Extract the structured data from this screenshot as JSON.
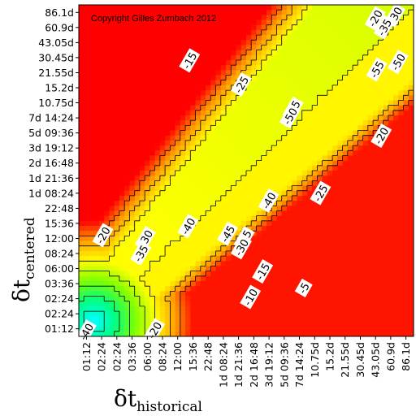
{
  "chart_data": {
    "type": "heatmap",
    "title": "",
    "annotation": "Copyright Gilles Zumbach 2012",
    "xlabel": {
      "symbol": "δt",
      "subscript": "historical"
    },
    "ylabel": {
      "symbol": "δt",
      "subscript": "centered"
    },
    "x_ticks": [
      "01:12",
      "02:24",
      "02:24",
      "03:36",
      "06:00",
      "08:24",
      "12:00",
      "15:36",
      "22:48",
      "1d 08:24",
      "1d 21:36",
      "2d 16:48",
      "3d 19:12",
      "5d 09:36",
      "7d 14:24",
      "10.75d",
      "15.2d",
      "21.55d",
      "30.45d",
      "43.05d",
      "60.9d",
      "86.1d"
    ],
    "y_ticks": [
      "86.1d",
      "60.9d",
      "43.05d",
      "30.45d",
      "21.55d",
      "15.2d",
      "10.75d",
      "7d 14:24",
      "5d 09:36",
      "3d 19:12",
      "2d 16:48",
      "1d 21:36",
      "1d 08:24",
      "22:48",
      "15:36",
      "12:00",
      "08:24",
      "06:00",
      "03:36",
      "02:24",
      "02:24",
      "01:12"
    ],
    "colormap": [
      "#0000ff",
      "#00a0ff",
      "#00ffff",
      "#00ff80",
      "#80ff00",
      "#ffff00",
      "#ffa000",
      "#ff0000"
    ],
    "value_range": [
      -55,
      0
    ],
    "contour_labels": [
      {
        "text": "-20",
        "col": 19.0,
        "row": 0.4
      },
      {
        "text": "-30",
        "col": 20.3,
        "row": 0.2
      },
      {
        "text": "-35",
        "col": 19.6,
        "row": 1.0
      },
      {
        "text": "-15",
        "col": 6.8,
        "row": 3.2
      },
      {
        "text": "-25",
        "col": 10.2,
        "row": 4.8
      },
      {
        "text": "-55",
        "col": 19.1,
        "row": 3.8
      },
      {
        "text": "-50",
        "col": 20.5,
        "row": 3.3
      },
      {
        "text": "-45",
        "col": 13.6,
        "row": 6.4
      },
      {
        "text": "-50",
        "col": 13.4,
        "row": 6.9
      },
      {
        "text": "-20",
        "col": 19.4,
        "row": 8.2
      },
      {
        "text": "-25",
        "col": 15.4,
        "row": 12.0
      },
      {
        "text": "-40",
        "col": 12.0,
        "row": 12.5
      },
      {
        "text": "-40",
        "col": 6.7,
        "row": 14.2
      },
      {
        "text": "-45",
        "col": 9.3,
        "row": 14.7
      },
      {
        "text": "-35",
        "col": 10.4,
        "row": 15.0
      },
      {
        "text": "-30",
        "col": 10.2,
        "row": 15.6
      },
      {
        "text": "-20",
        "col": 1.1,
        "row": 14.8
      },
      {
        "text": "-30",
        "col": 3.9,
        "row": 15.0
      },
      {
        "text": "-35",
        "col": 3.6,
        "row": 16.0
      },
      {
        "text": "-15",
        "col": 11.6,
        "row": 17.2
      },
      {
        "text": "-10",
        "col": 10.8,
        "row": 18.9
      },
      {
        "text": "-5",
        "col": 14.3,
        "row": 18.3
      },
      {
        "text": "-20",
        "col": 4.5,
        "row": 21.1
      },
      {
        "text": "-40",
        "col": 0.0,
        "row": 21.2
      }
    ]
  }
}
